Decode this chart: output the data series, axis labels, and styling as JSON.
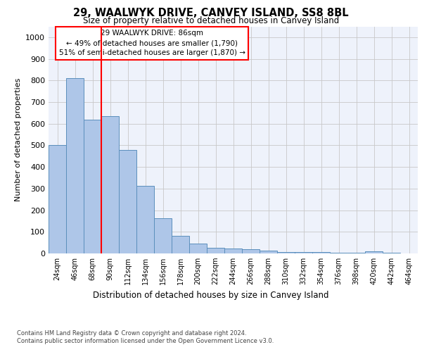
{
  "title": "29, WAALWYK DRIVE, CANVEY ISLAND, SS8 8BL",
  "subtitle": "Size of property relative to detached houses in Canvey Island",
  "xlabel": "Distribution of detached houses by size in Canvey Island",
  "ylabel": "Number of detached properties",
  "categories": [
    "24sqm",
    "46sqm",
    "68sqm",
    "90sqm",
    "112sqm",
    "134sqm",
    "156sqm",
    "178sqm",
    "200sqm",
    "222sqm",
    "244sqm",
    "266sqm",
    "288sqm",
    "310sqm",
    "332sqm",
    "354sqm",
    "376sqm",
    "398sqm",
    "420sqm",
    "442sqm",
    "464sqm"
  ],
  "values": [
    500,
    810,
    620,
    635,
    480,
    313,
    163,
    82,
    46,
    25,
    22,
    18,
    13,
    8,
    8,
    5,
    3,
    2,
    10,
    2,
    0
  ],
  "bar_color": "#aec6e8",
  "bar_edge_color": "#5b8fbc",
  "background_color": "#eef2fb",
  "grid_color": "#c8c8c8",
  "annotation_text": "29 WAALWYK DRIVE: 86sqm\n← 49% of detached houses are smaller (1,790)\n51% of semi-detached houses are larger (1,870) →",
  "red_line_x": 2.5,
  "ylim": [
    0,
    1050
  ],
  "yticks": [
    0,
    100,
    200,
    300,
    400,
    500,
    600,
    700,
    800,
    900,
    1000
  ],
  "footer_line1": "Contains HM Land Registry data © Crown copyright and database right 2024.",
  "footer_line2": "Contains public sector information licensed under the Open Government Licence v3.0."
}
